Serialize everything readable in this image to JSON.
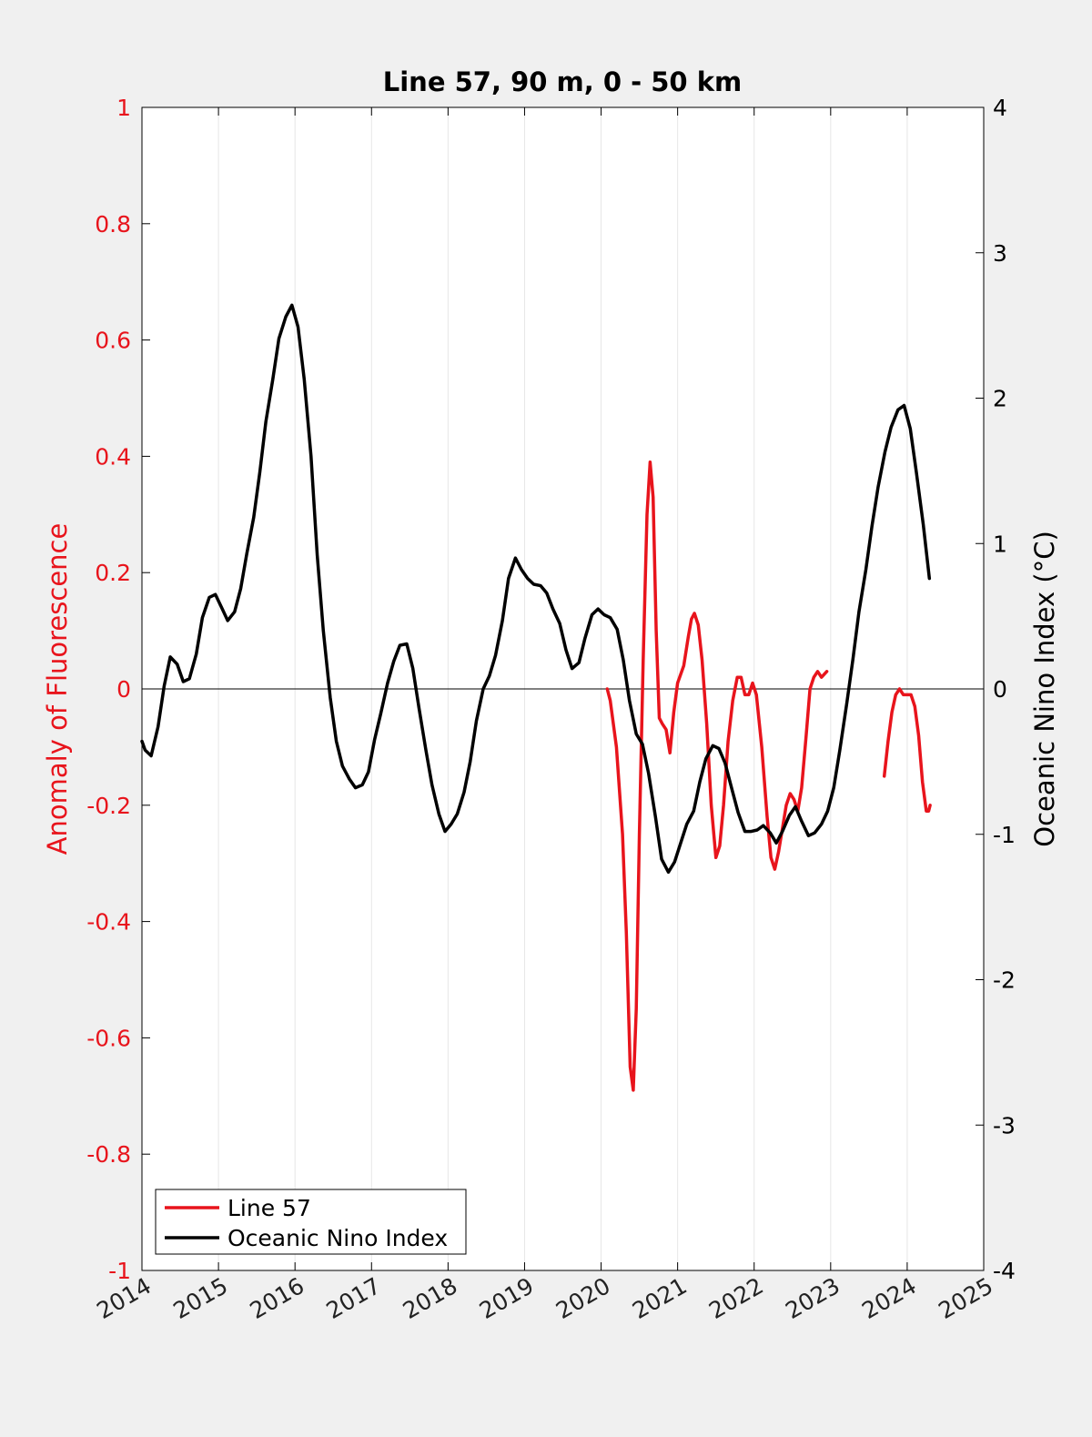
{
  "chart_data": {
    "type": "line",
    "title": "Line 57, 90 m, 0 - 50 km",
    "xlim": [
      2014,
      2025
    ],
    "x_ticks": [
      "2014",
      "2015",
      "2016",
      "2017",
      "2018",
      "2019",
      "2020",
      "2021",
      "2022",
      "2023",
      "2024",
      "2025"
    ],
    "left_axis": {
      "label": "Anomaly of Fluorescence",
      "range": [
        -1,
        1
      ],
      "ticks": [
        "-1",
        "-0.8",
        "-0.6",
        "-0.4",
        "-0.2",
        "0",
        "0.2",
        "0.4",
        "0.6",
        "0.8",
        "1"
      ],
      "color": "#e8141c"
    },
    "right_axis": {
      "label": "Oceanic Nino Index (°C)",
      "range": [
        -4,
        4
      ],
      "ticks": [
        "-4",
        "-3",
        "-2",
        "-1",
        "0",
        "1",
        "2",
        "3",
        "4"
      ],
      "color": "#000000"
    },
    "vertical_grid": true,
    "zero_line": true,
    "legend_position": "bottom-left",
    "series": [
      {
        "name": "Line 57",
        "axis": "left",
        "color": "#e8141c",
        "segments": [
          [
            [
              2020.08,
              0.0
            ],
            [
              2020.12,
              -0.02
            ],
            [
              2020.2,
              -0.1
            ],
            [
              2020.28,
              -0.25
            ],
            [
              2020.33,
              -0.42
            ],
            [
              2020.38,
              -0.65
            ],
            [
              2020.42,
              -0.69
            ],
            [
              2020.46,
              -0.55
            ],
            [
              2020.5,
              -0.25
            ],
            [
              2020.55,
              0.05
            ],
            [
              2020.6,
              0.3
            ],
            [
              2020.64,
              0.39
            ],
            [
              2020.68,
              0.33
            ],
            [
              2020.72,
              0.1
            ],
            [
              2020.76,
              -0.05
            ],
            [
              2020.8,
              -0.06
            ],
            [
              2020.85,
              -0.07
            ],
            [
              2020.9,
              -0.11
            ],
            [
              2020.95,
              -0.04
            ],
            [
              2021.0,
              0.01
            ],
            [
              2021.08,
              0.04
            ],
            [
              2021.14,
              0.09
            ],
            [
              2021.18,
              0.12
            ],
            [
              2021.22,
              0.13
            ],
            [
              2021.27,
              0.11
            ],
            [
              2021.32,
              0.05
            ],
            [
              2021.38,
              -0.06
            ],
            [
              2021.44,
              -0.2
            ],
            [
              2021.5,
              -0.29
            ],
            [
              2021.55,
              -0.27
            ],
            [
              2021.6,
              -0.2
            ],
            [
              2021.66,
              -0.09
            ],
            [
              2021.72,
              -0.02
            ],
            [
              2021.78,
              0.02
            ],
            [
              2021.83,
              0.02
            ],
            [
              2021.88,
              -0.01
            ],
            [
              2021.93,
              -0.01
            ],
            [
              2021.98,
              0.01
            ],
            [
              2022.03,
              -0.01
            ],
            [
              2022.1,
              -0.1
            ],
            [
              2022.17,
              -0.22
            ],
            [
              2022.22,
              -0.29
            ],
            [
              2022.27,
              -0.31
            ],
            [
              2022.32,
              -0.28
            ],
            [
              2022.37,
              -0.24
            ],
            [
              2022.42,
              -0.2
            ],
            [
              2022.47,
              -0.18
            ],
            [
              2022.52,
              -0.19
            ],
            [
              2022.57,
              -0.21
            ],
            [
              2022.62,
              -0.17
            ],
            [
              2022.68,
              -0.08
            ],
            [
              2022.73,
              0.0
            ],
            [
              2022.78,
              0.02
            ],
            [
              2022.83,
              0.03
            ],
            [
              2022.88,
              0.02
            ],
            [
              2022.95,
              0.03
            ]
          ],
          [
            [
              2023.7,
              -0.15
            ],
            [
              2023.75,
              -0.09
            ],
            [
              2023.8,
              -0.04
            ],
            [
              2023.85,
              -0.01
            ],
            [
              2023.9,
              0.0
            ],
            [
              2023.95,
              -0.01
            ],
            [
              2024.0,
              -0.01
            ],
            [
              2024.05,
              -0.01
            ],
            [
              2024.1,
              -0.03
            ],
            [
              2024.15,
              -0.08
            ],
            [
              2024.2,
              -0.16
            ],
            [
              2024.25,
              -0.21
            ],
            [
              2024.28,
              -0.21
            ],
            [
              2024.3,
              -0.2
            ]
          ]
        ]
      },
      {
        "name": "Oceanic Nino Index",
        "axis": "right",
        "color": "#000000",
        "segments": [
          [
            [
              2014.0,
              -0.36
            ],
            [
              2014.04,
              -0.42
            ],
            [
              2014.12,
              -0.46
            ],
            [
              2014.21,
              -0.26
            ],
            [
              2014.29,
              0.02
            ],
            [
              2014.37,
              0.22
            ],
            [
              2014.46,
              0.17
            ],
            [
              2014.54,
              0.05
            ],
            [
              2014.62,
              0.07
            ],
            [
              2014.71,
              0.24
            ],
            [
              2014.79,
              0.49
            ],
            [
              2014.88,
              0.63
            ],
            [
              2014.96,
              0.65
            ],
            [
              2015.04,
              0.56
            ],
            [
              2015.12,
              0.47
            ],
            [
              2015.21,
              0.53
            ],
            [
              2015.29,
              0.69
            ],
            [
              2015.37,
              0.93
            ],
            [
              2015.46,
              1.18
            ],
            [
              2015.54,
              1.49
            ],
            [
              2015.62,
              1.84
            ],
            [
              2015.71,
              2.13
            ],
            [
              2015.79,
              2.41
            ],
            [
              2015.88,
              2.56
            ],
            [
              2015.96,
              2.64
            ],
            [
              2016.04,
              2.49
            ],
            [
              2016.12,
              2.13
            ],
            [
              2016.21,
              1.6
            ],
            [
              2016.29,
              0.92
            ],
            [
              2016.37,
              0.4
            ],
            [
              2016.46,
              -0.06
            ],
            [
              2016.54,
              -0.36
            ],
            [
              2016.62,
              -0.53
            ],
            [
              2016.71,
              -0.62
            ],
            [
              2016.79,
              -0.68
            ],
            [
              2016.88,
              -0.66
            ],
            [
              2016.96,
              -0.57
            ],
            [
              2017.04,
              -0.35
            ],
            [
              2017.12,
              -0.17
            ],
            [
              2017.21,
              0.04
            ],
            [
              2017.29,
              0.19
            ],
            [
              2017.37,
              0.3
            ],
            [
              2017.46,
              0.31
            ],
            [
              2017.54,
              0.14
            ],
            [
              2017.62,
              -0.13
            ],
            [
              2017.71,
              -0.42
            ],
            [
              2017.79,
              -0.66
            ],
            [
              2017.88,
              -0.86
            ],
            [
              2017.96,
              -0.98
            ],
            [
              2018.04,
              -0.93
            ],
            [
              2018.12,
              -0.86
            ],
            [
              2018.21,
              -0.71
            ],
            [
              2018.29,
              -0.5
            ],
            [
              2018.37,
              -0.22
            ],
            [
              2018.46,
              0.0
            ],
            [
              2018.54,
              0.09
            ],
            [
              2018.62,
              0.23
            ],
            [
              2018.71,
              0.47
            ],
            [
              2018.79,
              0.76
            ],
            [
              2018.88,
              0.9
            ],
            [
              2018.96,
              0.82
            ],
            [
              2019.04,
              0.76
            ],
            [
              2019.12,
              0.72
            ],
            [
              2019.21,
              0.71
            ],
            [
              2019.29,
              0.66
            ],
            [
              2019.37,
              0.55
            ],
            [
              2019.46,
              0.45
            ],
            [
              2019.54,
              0.27
            ],
            [
              2019.62,
              0.14
            ],
            [
              2019.71,
              0.18
            ],
            [
              2019.79,
              0.35
            ],
            [
              2019.88,
              0.51
            ],
            [
              2019.96,
              0.55
            ],
            [
              2020.04,
              0.51
            ],
            [
              2020.12,
              0.49
            ],
            [
              2020.21,
              0.41
            ],
            [
              2020.29,
              0.2
            ],
            [
              2020.37,
              -0.08
            ],
            [
              2020.46,
              -0.31
            ],
            [
              2020.54,
              -0.38
            ],
            [
              2020.62,
              -0.58
            ],
            [
              2020.71,
              -0.88
            ],
            [
              2020.79,
              -1.17
            ],
            [
              2020.88,
              -1.26
            ],
            [
              2020.96,
              -1.19
            ],
            [
              2021.04,
              -1.06
            ],
            [
              2021.12,
              -0.93
            ],
            [
              2021.21,
              -0.84
            ],
            [
              2021.29,
              -0.64
            ],
            [
              2021.37,
              -0.48
            ],
            [
              2021.46,
              -0.39
            ],
            [
              2021.54,
              -0.41
            ],
            [
              2021.62,
              -0.51
            ],
            [
              2021.71,
              -0.69
            ],
            [
              2021.79,
              -0.85
            ],
            [
              2021.88,
              -0.98
            ],
            [
              2021.96,
              -0.98
            ],
            [
              2022.04,
              -0.97
            ],
            [
              2022.12,
              -0.94
            ],
            [
              2022.21,
              -0.99
            ],
            [
              2022.29,
              -1.06
            ],
            [
              2022.37,
              -0.98
            ],
            [
              2022.46,
              -0.87
            ],
            [
              2022.54,
              -0.81
            ],
            [
              2022.62,
              -0.91
            ],
            [
              2022.71,
              -1.01
            ],
            [
              2022.79,
              -0.99
            ],
            [
              2022.88,
              -0.93
            ],
            [
              2022.96,
              -0.84
            ],
            [
              2023.04,
              -0.68
            ],
            [
              2023.12,
              -0.42
            ],
            [
              2023.21,
              -0.1
            ],
            [
              2023.29,
              0.2
            ],
            [
              2023.37,
              0.53
            ],
            [
              2023.46,
              0.82
            ],
            [
              2023.54,
              1.12
            ],
            [
              2023.62,
              1.39
            ],
            [
              2023.71,
              1.63
            ],
            [
              2023.79,
              1.8
            ],
            [
              2023.88,
              1.92
            ],
            [
              2023.96,
              1.95
            ],
            [
              2024.04,
              1.79
            ],
            [
              2024.12,
              1.49
            ],
            [
              2024.21,
              1.13
            ],
            [
              2024.29,
              0.76
            ]
          ]
        ]
      }
    ]
  }
}
